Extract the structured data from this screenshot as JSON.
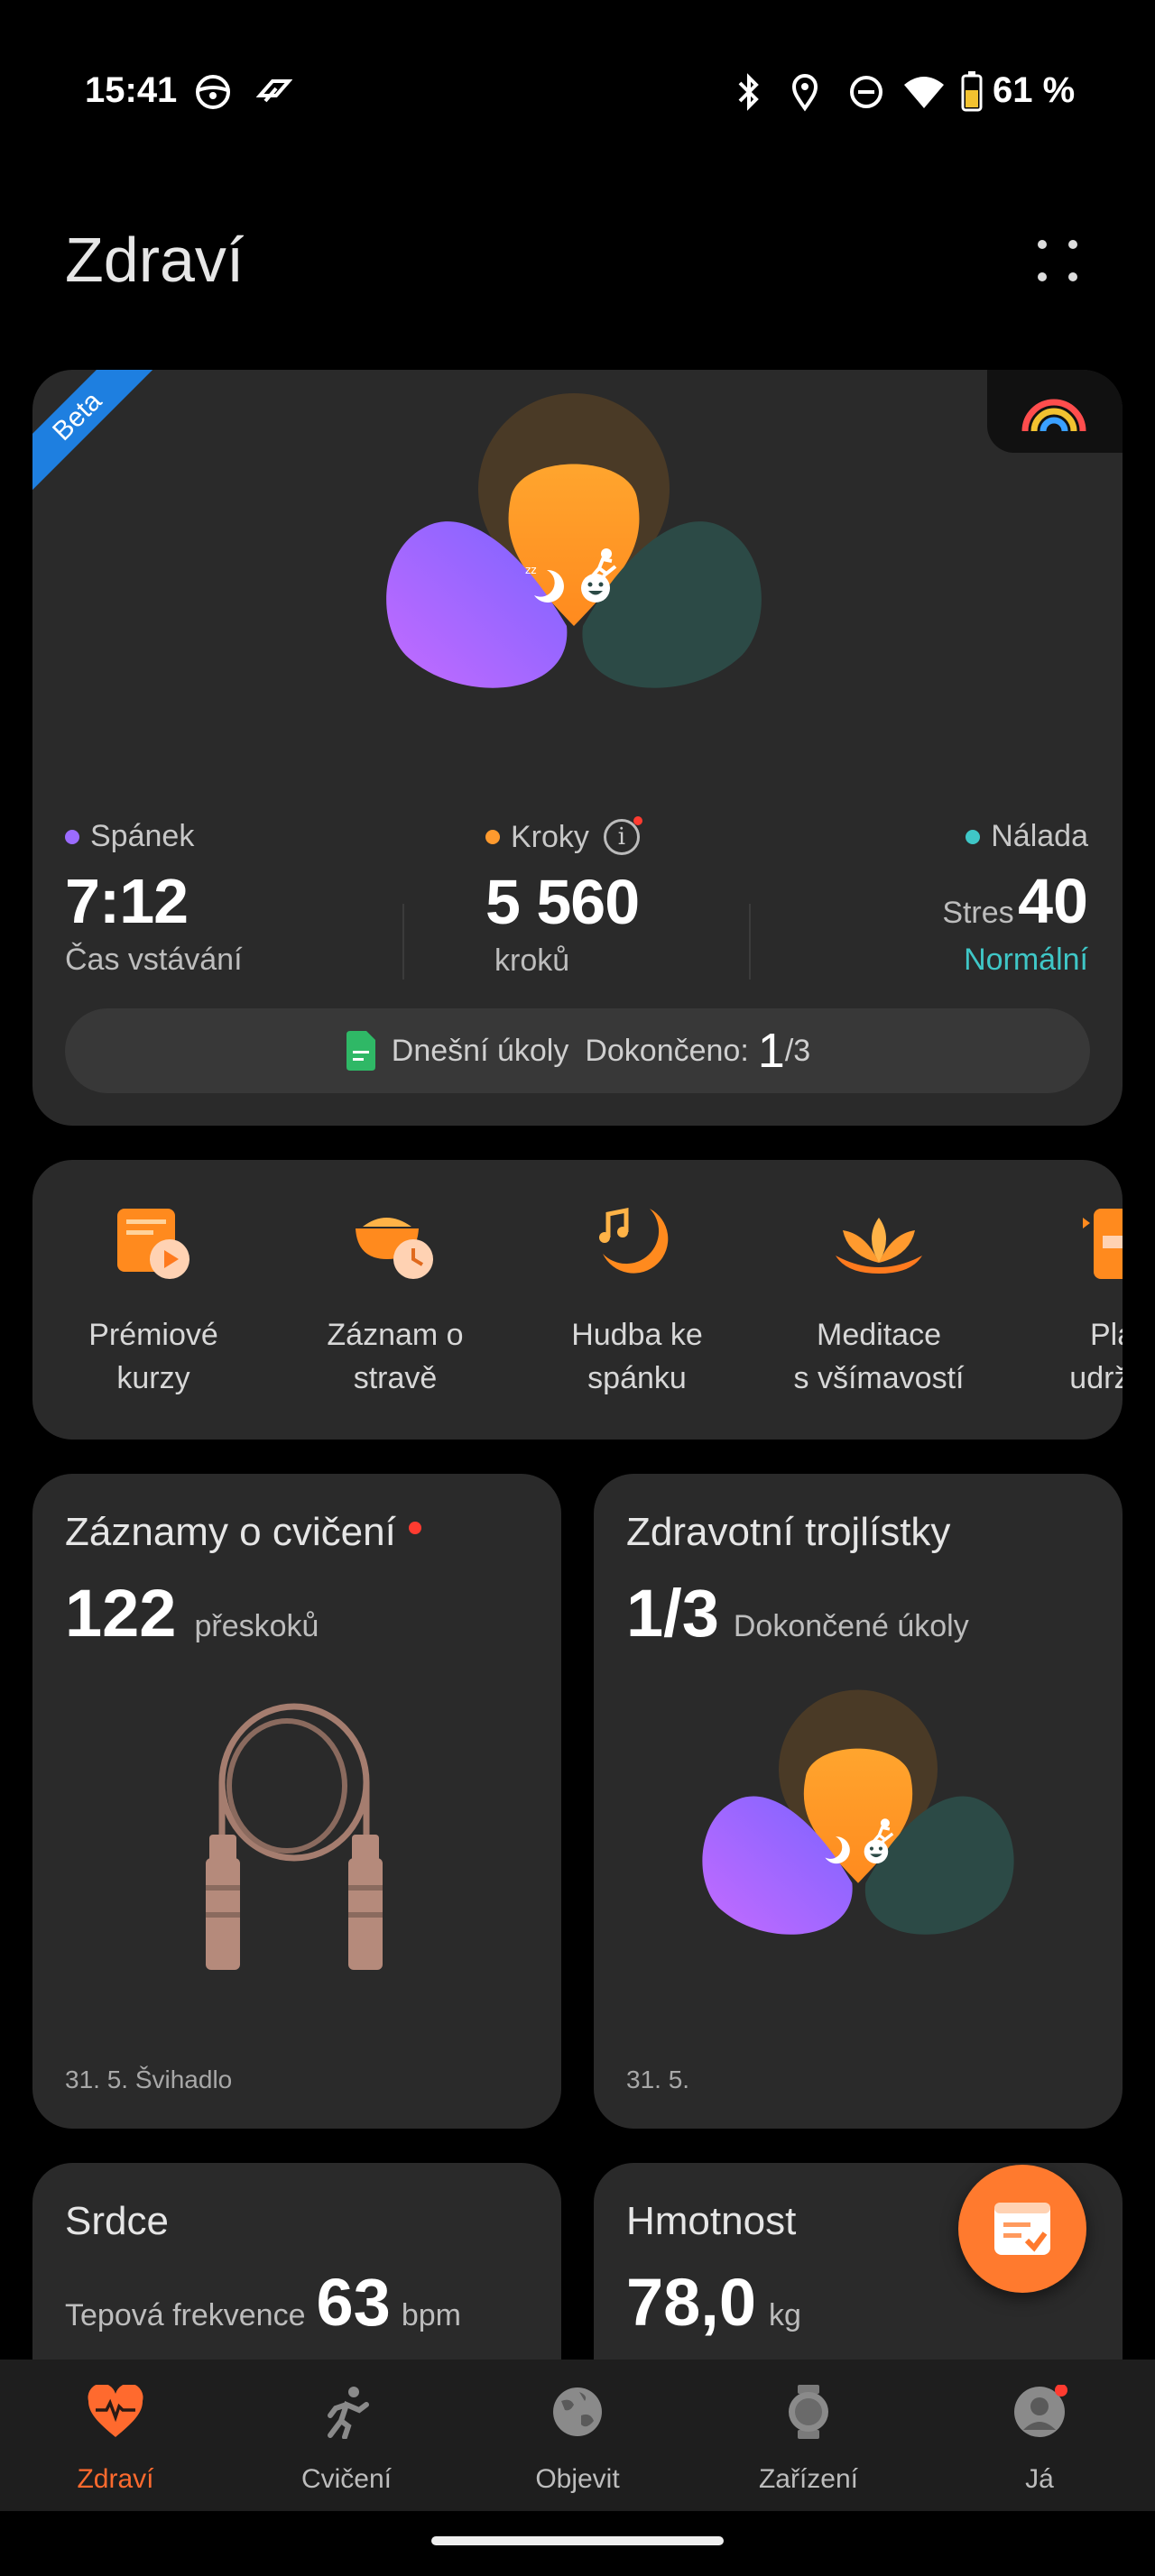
{
  "status_bar": {
    "time": "15:41",
    "battery": "61 %"
  },
  "header": {
    "title": "Zdraví"
  },
  "summary_card": {
    "beta_label": "Beta",
    "sleep": {
      "label": "Spánek",
      "value": "7:12",
      "caption": "Čas vstávání",
      "color": "#9b6bff"
    },
    "steps": {
      "label": "Kroky",
      "value": "5 560",
      "caption": "kroků",
      "color": "#ff9a2e"
    },
    "mood": {
      "label": "Nálada",
      "stress_label": "Stres",
      "stress_value": "40",
      "state": "Normální",
      "color": "#3fc7c7"
    },
    "tasks": {
      "label": "Dnešní úkoly",
      "done_label": "Dokončeno:",
      "done": "1",
      "total": "/3"
    }
  },
  "quick_actions": [
    {
      "label_1": "Prémiové",
      "label_2": "kurzy",
      "icon": "premium-course-icon"
    },
    {
      "label_1": "Záznam o",
      "label_2": "stravě",
      "icon": "food-log-icon"
    },
    {
      "label_1": "Hudba ke",
      "label_2": "spánku",
      "icon": "sleep-music-icon"
    },
    {
      "label_1": "Meditace",
      "label_2": "s všímavostí",
      "icon": "lotus-icon"
    },
    {
      "label_1": "Plán",
      "label_2": "udržení",
      "icon": "plan-icon"
    }
  ],
  "exercise_card": {
    "title": "Záznamy o cvičení",
    "value": "122",
    "unit": "přeskoků",
    "footer": "31. 5. Švihadlo"
  },
  "clover_card": {
    "title": "Zdravotní trojlístky",
    "value": "1/3",
    "unit": "Dokončené úkoly",
    "footer": "31. 5."
  },
  "heart_card": {
    "title": "Srdce",
    "label": "Tepová frekvence",
    "value": "63",
    "unit": "bpm"
  },
  "weight_card": {
    "title": "Hmotnost",
    "value": "78,0",
    "unit": "kg"
  },
  "tabs": [
    {
      "label": "Zdraví",
      "active": true
    },
    {
      "label": "Cvičení",
      "active": false
    },
    {
      "label": "Objevit",
      "active": false
    },
    {
      "label": "Zařízení",
      "active": false
    },
    {
      "label": "Já",
      "active": false
    }
  ],
  "colors": {
    "accent": "#ff6a2e",
    "card": "#2a2a2a",
    "sleep": "#9b6bff",
    "steps": "#ff9a2e",
    "mood": "#2e4f4b"
  }
}
